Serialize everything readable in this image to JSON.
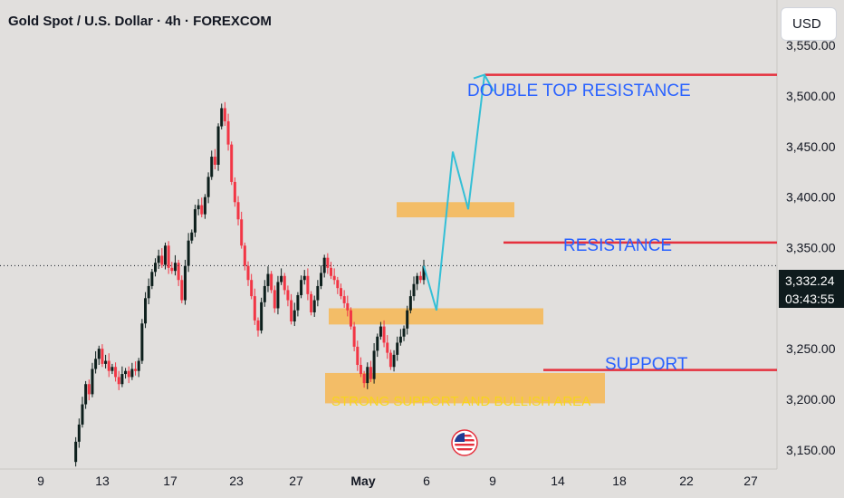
{
  "header": {
    "title": "Gold Spot / U.S. Dollar · 4h · FOREXCOM"
  },
  "toolbar": {
    "currency": "USD"
  },
  "price_tag": {
    "price": "3,332.24",
    "countdown": "03:43:55"
  },
  "annotations": {
    "double_top": "DOUBLE TOP RESISTANCE",
    "resistance": "RESISTANCE",
    "support": "SUPPORT",
    "strong_support": "STRONG SUPPORT AND BULLISH AREA"
  },
  "colors": {
    "background": "#e1dfdd",
    "up_candle": "#0d1f1c",
    "down_candle": "#f23645",
    "level_line": "#e5303d",
    "annotation_text": "#2962ff",
    "zone_fill": "#f5b95a",
    "zone_text": "#f7d51b",
    "projection": "#33bfd6",
    "price_tag_bg": "#0f1b1d"
  },
  "icons": {
    "flag": "us-flag-icon"
  },
  "chart_data": {
    "type": "candlestick",
    "title": "Gold Spot / U.S. Dollar · 4h · FOREXCOM",
    "y_ticks": [
      "3,150.00",
      "3,200.00",
      "3,250.00",
      "3,300.00",
      "3,350.00",
      "3,400.00",
      "3,450.00",
      "3,500.00",
      "3,550.00"
    ],
    "y_tick_values": [
      3150,
      3200,
      3250,
      3300,
      3350,
      3400,
      3450,
      3500,
      3550
    ],
    "ylim": [
      3131,
      3595
    ],
    "x_ticks": [
      "9",
      "13",
      "17",
      "23",
      "27",
      "May",
      "6",
      "9",
      "14",
      "18",
      "22",
      "27"
    ],
    "x_tick_bold": [
      false,
      false,
      false,
      false,
      false,
      true,
      false,
      false,
      false,
      false,
      false,
      false
    ],
    "current_price": 3332.24,
    "levels": {
      "double_top_resistance": 3521,
      "resistance": 3355,
      "support": 3229
    },
    "zones": [
      {
        "name": "upper",
        "low": 3380,
        "high": 3395
      },
      {
        "name": "middle",
        "low": 3274,
        "high": 3290
      },
      {
        "name": "strong_support",
        "low": 3196,
        "high": 3226
      }
    ],
    "projection_path": [
      3288,
      3445,
      3388,
      3521,
      3500
    ],
    "price_path": [
      3138,
      3158,
      3175,
      3195,
      3215,
      3205,
      3230,
      3240,
      3250,
      3235,
      3238,
      3228,
      3232,
      3222,
      3215,
      3225,
      3228,
      3222,
      3230,
      3228,
      3238,
      3275,
      3300,
      3312,
      3326,
      3335,
      3342,
      3333,
      3352,
      3330,
      3327,
      3335,
      3318,
      3298,
      3332,
      3357,
      3365,
      3388,
      3392,
      3383,
      3400,
      3420,
      3440,
      3432,
      3470,
      3488,
      3475,
      3452,
      3415,
      3395,
      3378,
      3352,
      3332,
      3318,
      3302,
      3278,
      3268,
      3296,
      3312,
      3324,
      3308,
      3290,
      3316,
      3322,
      3308,
      3298,
      3277,
      3288,
      3303,
      3318,
      3322,
      3304,
      3286,
      3298,
      3312,
      3325,
      3340,
      3330,
      3322,
      3318,
      3310,
      3302,
      3295,
      3288,
      3272,
      3252,
      3234,
      3225,
      3216,
      3232,
      3220,
      3248,
      3262,
      3272,
      3256,
      3246,
      3232,
      3244,
      3256,
      3262,
      3270,
      3288,
      3302,
      3314,
      3322,
      3318,
      3332
    ]
  }
}
